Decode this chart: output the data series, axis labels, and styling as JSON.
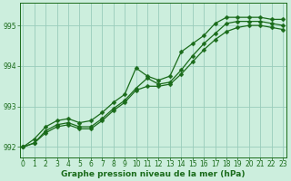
{
  "x_hours": [
    0,
    1,
    2,
    3,
    4,
    5,
    6,
    7,
    8,
    9,
    10,
    11,
    12,
    13,
    14,
    15,
    16,
    17,
    18,
    19,
    20,
    21,
    22,
    23
  ],
  "line1": [
    992.0,
    992.2,
    992.5,
    992.65,
    992.7,
    992.6,
    992.65,
    992.85,
    993.1,
    993.3,
    993.95,
    993.75,
    993.65,
    993.75,
    994.35,
    994.55,
    994.75,
    995.05,
    995.2,
    995.2,
    995.2,
    995.2,
    995.15,
    995.15
  ],
  "line2": [
    992.0,
    992.1,
    992.4,
    992.55,
    992.6,
    992.5,
    992.5,
    992.7,
    992.95,
    993.15,
    993.45,
    993.7,
    993.55,
    993.6,
    993.9,
    994.25,
    994.55,
    994.8,
    995.05,
    995.1,
    995.1,
    995.1,
    995.05,
    995.0
  ],
  "line3": [
    992.0,
    992.1,
    992.35,
    992.5,
    992.55,
    992.45,
    992.45,
    992.65,
    992.9,
    993.1,
    993.4,
    993.5,
    993.5,
    993.55,
    993.8,
    994.1,
    994.4,
    994.65,
    994.85,
    994.95,
    995.0,
    995.0,
    994.95,
    994.9
  ],
  "line_color": "#1a6b1a",
  "background_color": "#cceedd",
  "grid_color": "#99ccbb",
  "ylim": [
    991.75,
    995.55
  ],
  "yticks": [
    992,
    993,
    994,
    995
  ],
  "xlabel": "Graphe pression niveau de la mer (hPa)",
  "marker_size": 2.5,
  "tick_fontsize": 5.5,
  "xlabel_fontsize": 6.5
}
